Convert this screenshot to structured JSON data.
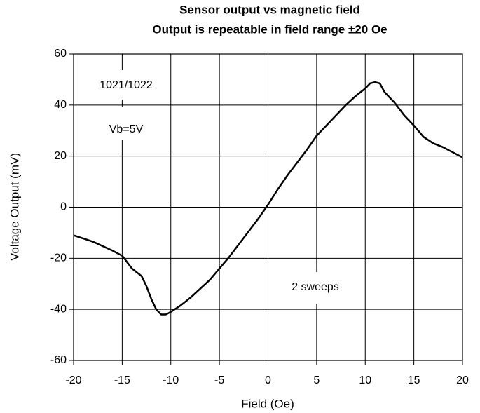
{
  "chart_data": {
    "type": "line",
    "title": "Sensor output vs magnetic field",
    "subtitle": "Output is repeatable in field range ±20 Oe",
    "x_label": "Field (Oe)",
    "y_label": "Voltage Output (mV)",
    "annotations": [
      "1021/1022",
      "Vb=5V",
      "2 sweeps"
    ],
    "x": [
      -20,
      -18,
      -16,
      -15,
      -14,
      -13,
      -12.5,
      -12,
      -11.5,
      -11,
      -10.5,
      -10,
      -9,
      -8,
      -7,
      -6,
      -5,
      -4,
      -3,
      -2,
      -1,
      0,
      1,
      2,
      3,
      4,
      5,
      6,
      7,
      8,
      9,
      10,
      10.5,
      11,
      11.5,
      12,
      13,
      14,
      15,
      16,
      17,
      18,
      19,
      20
    ],
    "series": [
      {
        "color": "#000000",
        "values": [
          -11,
          -13.5,
          -17,
          -19,
          -24,
          -27,
          -31,
          -36,
          -40,
          -42,
          -42,
          -41,
          -38.5,
          -35.5,
          -32,
          -28.5,
          -24,
          -19.5,
          -14.5,
          -9.5,
          -4.5,
          1,
          7,
          12.5,
          17.5,
          22.5,
          28,
          32,
          36,
          40,
          43.5,
          46.5,
          48.5,
          49,
          48.5,
          45,
          41,
          36,
          32,
          27.5,
          25,
          23.5,
          21.5,
          19.5
        ]
      }
    ],
    "xlim": [
      -20,
      20
    ],
    "xticks": [
      -20,
      -15,
      -10,
      -5,
      0,
      5,
      10,
      15,
      20
    ],
    "ylim": [
      -60,
      60
    ],
    "yticks": [
      -60,
      -40,
      -20,
      0,
      20,
      40,
      60
    ],
    "grid": true
  }
}
